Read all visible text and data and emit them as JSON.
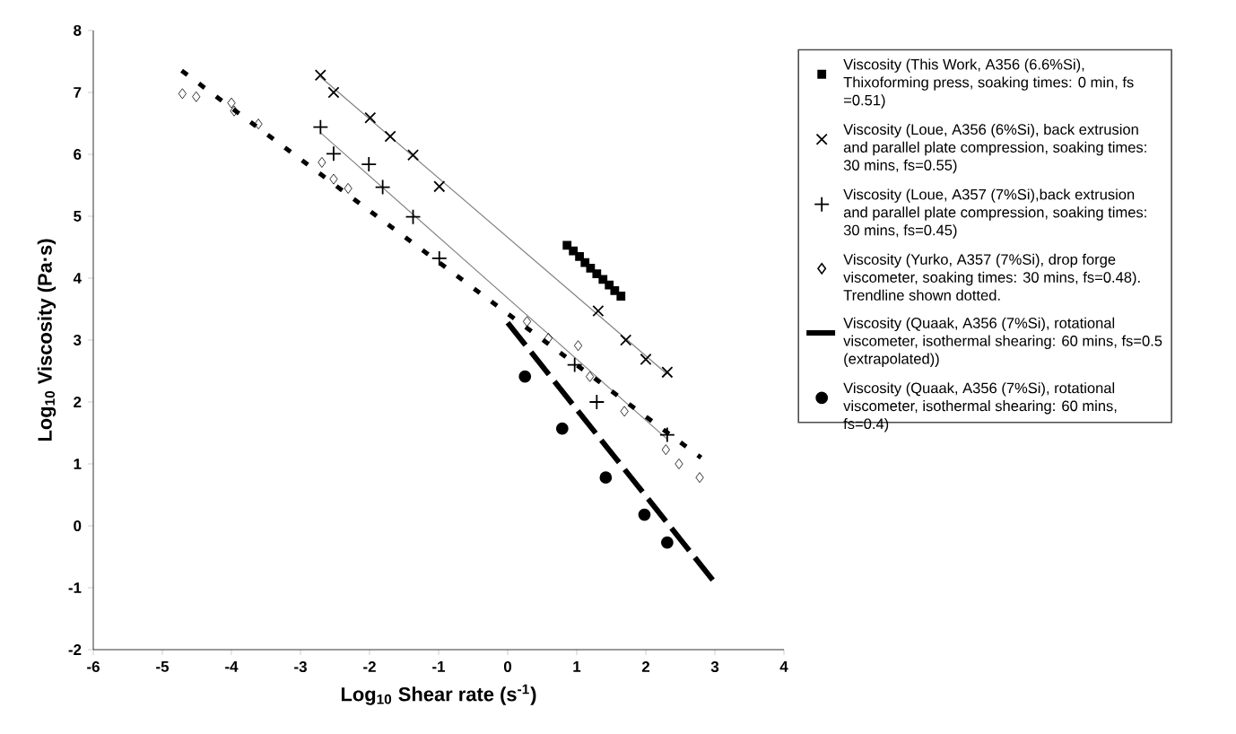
{
  "chart_data": {
    "type": "scatter",
    "xlabel": "Log$_{10}$ Shear rate (s$^{-1}$)",
    "ylabel": "Log$_{10}$ Viscosity (Pa·s)",
    "xlim": [
      -6,
      4
    ],
    "ylim": [
      -2,
      8
    ],
    "xticks": [
      -6,
      -5,
      -4,
      -3,
      -2,
      -1,
      0,
      1,
      2,
      3,
      4
    ],
    "yticks": [
      -2,
      -1,
      0,
      1,
      2,
      3,
      4,
      5,
      6,
      7,
      8
    ],
    "grid": false,
    "legend": "right",
    "series": [
      {
        "name": "Viscosity (This Work, A356 (6.6%Si), Thixoforming press, soaking times: 0 min, fs =0.51)",
        "type": "scatter",
        "marker": "square",
        "color": "#000000",
        "x": [
          0.86,
          0.95,
          1.04,
          1.12,
          1.2,
          1.29,
          1.38,
          1.47,
          1.55,
          1.64
        ],
        "values": [
          4.53,
          4.44,
          4.35,
          4.25,
          4.16,
          4.07,
          3.98,
          3.89,
          3.8,
          3.71
        ]
      },
      {
        "name": "Viscosity (Loue, A356 (6%Si), back extrusion and parallel plate compression, soaking times: 30 mins, fs=0.55)",
        "type": "scatter",
        "marker": "cross",
        "color": "#000000",
        "x": [
          -2.71,
          -2.52,
          -1.99,
          -1.7,
          -1.37,
          -0.99,
          1.31,
          1.71,
          2.0,
          2.31
        ],
        "values": [
          7.28,
          7.0,
          6.59,
          6.29,
          5.99,
          5.48,
          3.47,
          3.0,
          2.69,
          2.48
        ]
      },
      {
        "name": "Viscosity (Loue, A357 (7%Si),back extrusion and parallel plate compression, soaking times: 30 mins, fs=0.45)",
        "type": "scatter",
        "marker": "plus",
        "color": "#000000",
        "x": [
          -2.71,
          -2.52,
          -2.01,
          -1.81,
          -1.37,
          -0.99,
          0.97,
          1.29,
          2.31
        ],
        "values": [
          6.44,
          6.01,
          5.84,
          5.47,
          4.99,
          4.32,
          2.6,
          2.0,
          1.47
        ]
      },
      {
        "name": "Viscosity (Yurko, A357 (7%Si), drop forge viscometer, soaking times: 30 mins, fs=0.48). Trendline shown dotted.",
        "type": "scatter",
        "marker": "diamond",
        "color": "#000000",
        "x": [
          -4.71,
          -4.51,
          -4.0,
          -3.96,
          -3.61,
          -2.69,
          -2.52,
          -2.31,
          0.28,
          0.59,
          1.02,
          1.19,
          1.69,
          2.29,
          2.48,
          2.78
        ],
        "values": [
          6.98,
          6.93,
          6.83,
          6.7,
          6.49,
          5.87,
          5.6,
          5.45,
          3.3,
          3.03,
          2.91,
          2.41,
          1.85,
          1.23,
          1.0,
          0.78
        ]
      },
      {
        "name": "Viscosity (Quaak, A356 (7%Si), rotational viscometer, isothermal shearing: 60 mins, fs=0.5 (extrapolated))",
        "type": "line",
        "marker": "none",
        "line_style": "dashed",
        "color": "#000000",
        "x": [
          0.0,
          3.03
        ],
        "values": [
          3.28,
          -0.96
        ]
      },
      {
        "name": "Viscosity (Quaak, A356 (7%Si), rotational viscometer, isothermal shearing: 60 mins, fs=0.4)",
        "type": "scatter",
        "marker": "circle",
        "color": "#000000",
        "x": [
          0.25,
          0.79,
          1.42,
          1.98,
          2.31
        ],
        "values": [
          2.41,
          1.57,
          0.78,
          0.18,
          -0.27
        ]
      },
      {
        "type": "line",
        "marker": "none",
        "line_style": "solid",
        "color": "#808080",
        "x": [
          -2.71,
          2.31
        ],
        "values": [
          7.25,
          2.45
        ]
      },
      {
        "type": "line",
        "marker": "none",
        "line_style": "solid",
        "color": "#808080",
        "x": [
          -2.71,
          2.31
        ],
        "values": [
          6.35,
          1.4
        ]
      },
      {
        "type": "line",
        "marker": "none",
        "line_style": "dotted",
        "color": "#000000",
        "x": [
          -4.72,
          2.8
        ],
        "values": [
          7.35,
          1.1
        ]
      }
    ]
  }
}
